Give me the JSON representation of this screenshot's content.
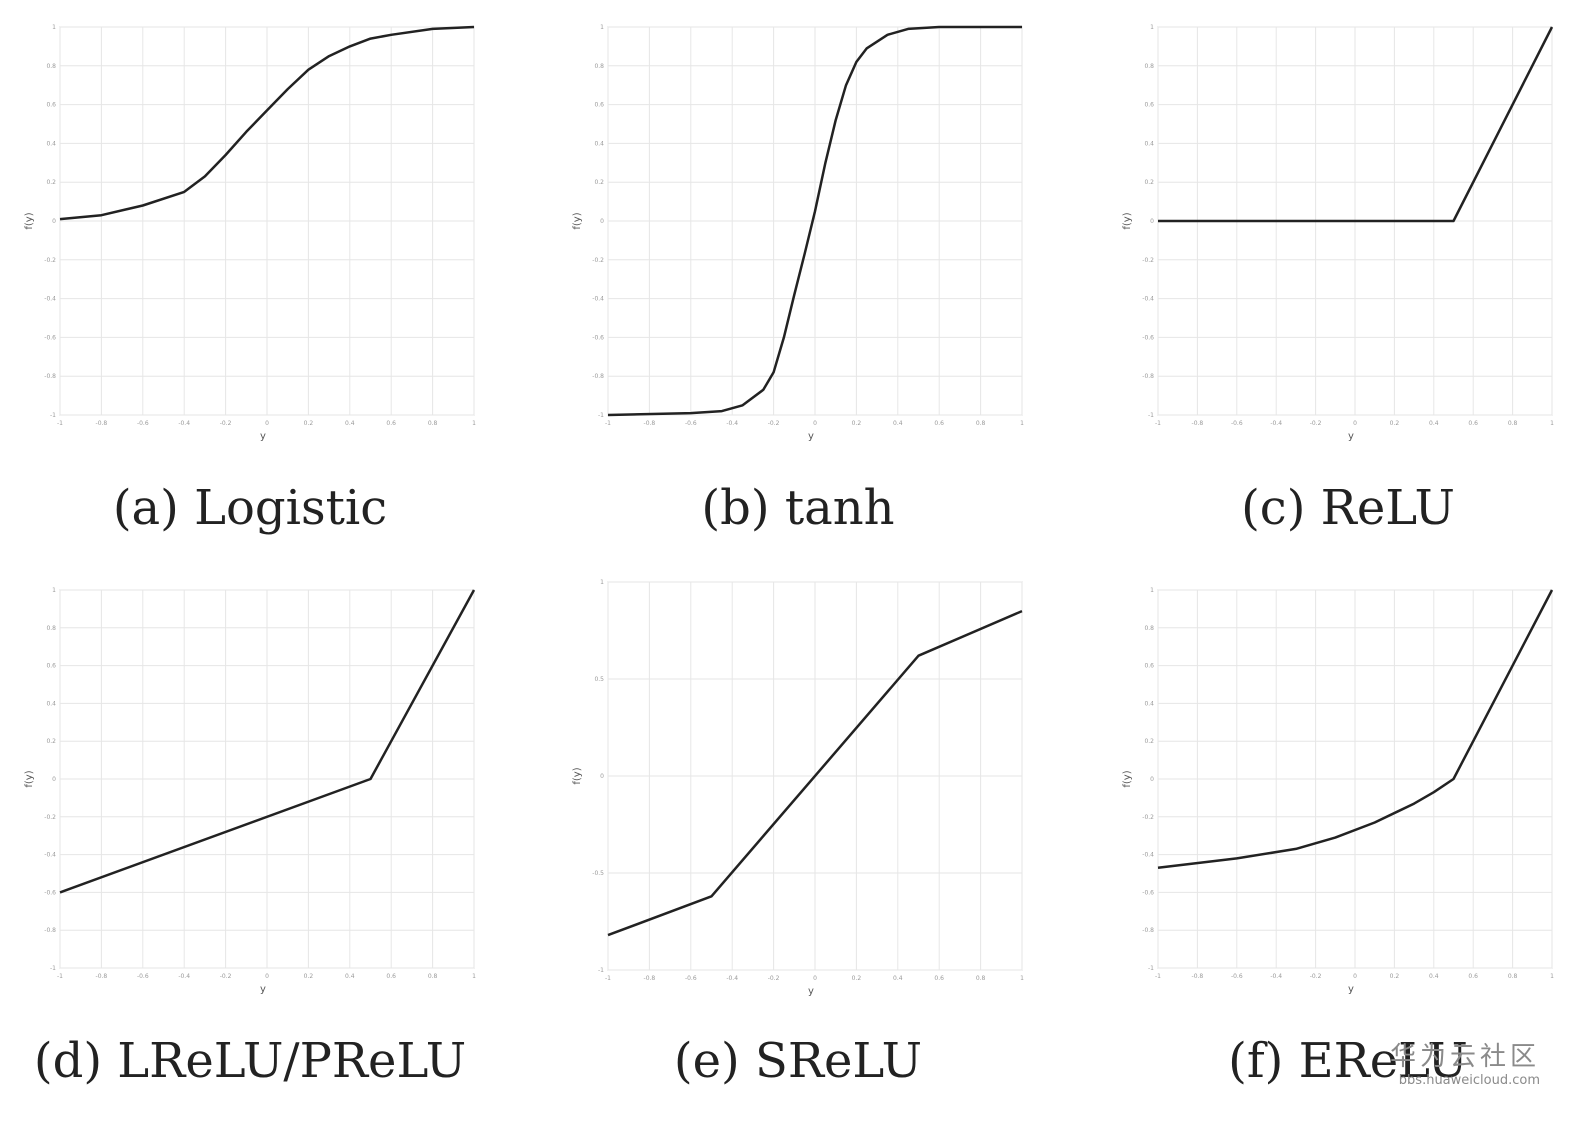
{
  "chart_data": [
    {
      "id": "a",
      "type": "line",
      "caption": "(a) Logistic",
      "xlabel": "y",
      "ylabel": "f(y)",
      "xlim": [
        -1,
        1
      ],
      "ylim": [
        -1,
        1
      ],
      "xticks": [
        "-1",
        "-0.8",
        "-0.6",
        "-0.4",
        "-0.2",
        "0",
        "0.2",
        "0.4",
        "0.6",
        "0.8",
        "1"
      ],
      "yticks": [
        "-1",
        "-0.8",
        "-0.6",
        "-0.4",
        "-0.2",
        "0",
        "0.2",
        "0.4",
        "0.6",
        "0.8",
        "1"
      ],
      "x": [
        -1,
        -0.8,
        -0.6,
        -0.4,
        -0.3,
        -0.2,
        -0.1,
        0,
        0.1,
        0.2,
        0.3,
        0.4,
        0.5,
        0.6,
        0.8,
        1
      ],
      "y": [
        0.01,
        0.03,
        0.08,
        0.15,
        0.23,
        0.34,
        0.46,
        0.57,
        0.68,
        0.78,
        0.85,
        0.9,
        0.94,
        0.96,
        0.99,
        1
      ]
    },
    {
      "id": "b",
      "type": "line",
      "caption": "(b) tanh",
      "xlabel": "y",
      "ylabel": "f(y)",
      "xlim": [
        -1,
        1
      ],
      "ylim": [
        -1,
        1
      ],
      "xticks": [
        "-1",
        "-0.8",
        "-0.6",
        "-0.4",
        "-0.2",
        "0",
        "0.2",
        "0.4",
        "0.6",
        "0.8",
        "1"
      ],
      "yticks": [
        "-1",
        "-0.8",
        "-0.6",
        "-0.4",
        "-0.2",
        "0",
        "0.2",
        "0.4",
        "0.6",
        "0.8",
        "1"
      ],
      "x": [
        -1,
        -0.6,
        -0.45,
        -0.35,
        -0.25,
        -0.2,
        -0.15,
        -0.1,
        -0.05,
        0,
        0.05,
        0.1,
        0.15,
        0.2,
        0.25,
        0.35,
        0.45,
        0.6,
        1
      ],
      "y": [
        -1,
        -0.99,
        -0.98,
        -0.95,
        -0.87,
        -0.78,
        -0.6,
        -0.38,
        -0.17,
        0.05,
        0.3,
        0.52,
        0.7,
        0.82,
        0.89,
        0.96,
        0.99,
        1,
        1
      ]
    },
    {
      "id": "c",
      "type": "line",
      "caption": "(c) ReLU",
      "xlabel": "y",
      "ylabel": "f(y)",
      "xlim": [
        -1,
        1
      ],
      "ylim": [
        -1,
        1
      ],
      "xticks": [
        "-1",
        "-0.8",
        "-0.6",
        "-0.4",
        "-0.2",
        "0",
        "0.2",
        "0.4",
        "0.6",
        "0.8",
        "1"
      ],
      "yticks": [
        "-1",
        "-0.8",
        "-0.6",
        "-0.4",
        "-0.2",
        "0",
        "0.2",
        "0.4",
        "0.6",
        "0.8",
        "1"
      ],
      "x": [
        -1,
        0.5,
        1
      ],
      "y": [
        0,
        0,
        1
      ]
    },
    {
      "id": "d",
      "type": "line",
      "caption": "(d) LReLU/PReLU",
      "xlabel": "y",
      "ylabel": "f(y)",
      "xlim": [
        -1,
        1
      ],
      "ylim": [
        -1,
        1
      ],
      "xticks": [
        "-1",
        "-0.8",
        "-0.6",
        "-0.4",
        "-0.2",
        "0",
        "0.2",
        "0.4",
        "0.6",
        "0.8",
        "1"
      ],
      "yticks": [
        "-1",
        "-0.8",
        "-0.6",
        "-0.4",
        "-0.2",
        "0",
        "0.2",
        "0.4",
        "0.6",
        "0.8",
        "1"
      ],
      "x": [
        -1,
        0.5,
        1
      ],
      "y": [
        -0.6,
        0,
        1
      ]
    },
    {
      "id": "e",
      "type": "line",
      "caption": "(e) SReLU",
      "xlabel": "y",
      "ylabel": "f(y)",
      "xlim": [
        -1,
        1
      ],
      "ylim": [
        -1,
        1
      ],
      "xticks": [
        "-1",
        "-0.8",
        "-0.6",
        "-0.4",
        "-0.2",
        "0",
        "0.2",
        "0.4",
        "0.6",
        "0.8",
        "1"
      ],
      "yticks": [
        "-1",
        "-0.5",
        "0",
        "0.5",
        "1"
      ],
      "x": [
        -1,
        -0.5,
        0.5,
        1
      ],
      "y": [
        -0.82,
        -0.62,
        0.62,
        0.85
      ]
    },
    {
      "id": "f",
      "type": "line",
      "caption": "(f) EReLU",
      "xlabel": "y",
      "ylabel": "f(y)",
      "xlim": [
        -1,
        1
      ],
      "ylim": [
        -1,
        1
      ],
      "xticks": [
        "-1",
        "-0.8",
        "-0.6",
        "-0.4",
        "-0.2",
        "0",
        "0.2",
        "0.4",
        "0.6",
        "0.8",
        "1"
      ],
      "yticks": [
        "-1",
        "-0.8",
        "-0.6",
        "-0.4",
        "-0.2",
        "0",
        "0.2",
        "0.4",
        "0.6",
        "0.8",
        "1"
      ],
      "x": [
        -1,
        -0.6,
        -0.3,
        -0.1,
        0.1,
        0.3,
        0.4,
        0.5,
        1
      ],
      "y": [
        -0.47,
        -0.42,
        -0.37,
        -0.31,
        -0.23,
        -0.13,
        -0.07,
        0,
        1
      ]
    }
  ],
  "watermark": {
    "title": "华为云社区",
    "url": "bbs.huaweicloud.com"
  }
}
